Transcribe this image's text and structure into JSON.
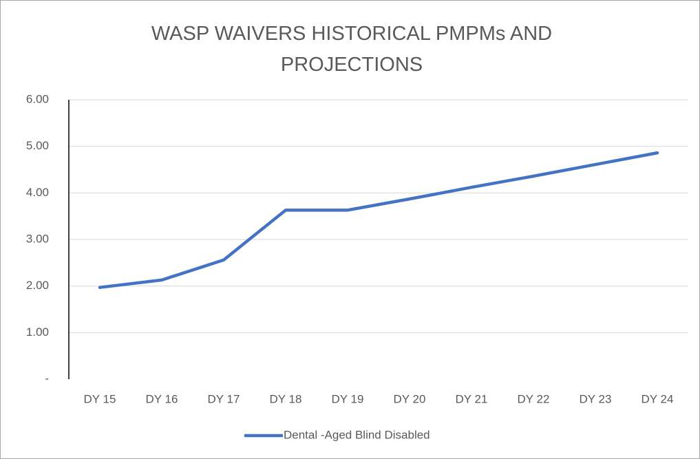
{
  "chart_data": {
    "type": "line",
    "title": "WASP WAIVERS HISTORICAL PMPMs AND PROJECTIONS",
    "categories": [
      "DY 15",
      "DY 16",
      "DY 17",
      "DY 18",
      "DY 19",
      "DY 20",
      "DY 21",
      "DY 22",
      "DY 23",
      "DY 24"
    ],
    "series": [
      {
        "name": "Dental -Aged Blind Disabled",
        "color": "#4472c4",
        "values": [
          1.97,
          2.13,
          2.56,
          3.63,
          3.63,
          3.87,
          4.12,
          4.36,
          4.61,
          4.86
        ]
      }
    ],
    "ylim": [
      0,
      6
    ],
    "yticks": [
      {
        "value": 0,
        "label": "-"
      },
      {
        "value": 1,
        "label": "1.00"
      },
      {
        "value": 2,
        "label": "2.00"
      },
      {
        "value": 3,
        "label": "3.00"
      },
      {
        "value": 4,
        "label": "4.00"
      },
      {
        "value": 5,
        "label": "5.00"
      },
      {
        "value": 6,
        "label": "6.00"
      }
    ],
    "grid": true,
    "legend": "bottom"
  }
}
